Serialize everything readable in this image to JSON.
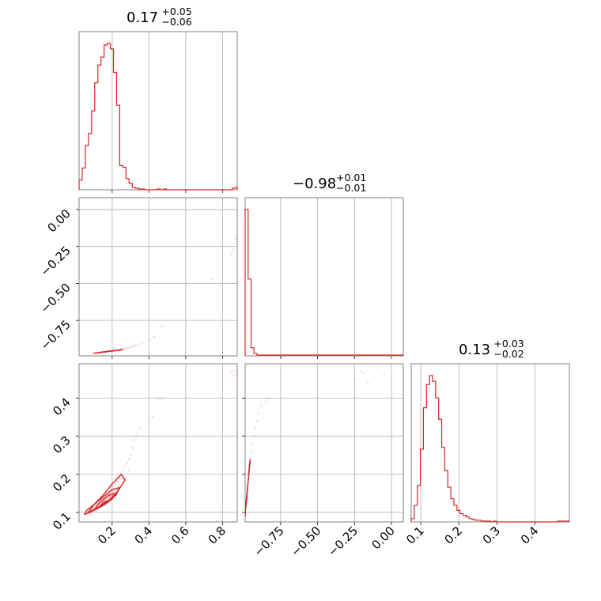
{
  "chart_data": {
    "type": "corner",
    "color": "#d62728",
    "params": [
      {
        "range": [
          0.02,
          0.88
        ],
        "ticks": [
          0.2,
          0.4,
          0.6,
          0.8
        ],
        "tick_labels": [
          "0.2",
          "0.4",
          "0.6",
          "0.8"
        ],
        "title": {
          "value": "0.17",
          "plus": "+0.05",
          "minus": "−0.06"
        }
      },
      {
        "range": [
          -0.99,
          0.08
        ],
        "ticks": [
          -0.75,
          -0.5,
          -0.25,
          0.0
        ],
        "tick_labels": [
          "−0.75",
          "−0.50",
          "−0.25",
          "0.00"
        ],
        "title": {
          "value": "−0.98",
          "plus": "+0.01",
          "minus": "−0.01"
        }
      },
      {
        "range": [
          0.075,
          0.49
        ],
        "ticks": [
          0.1,
          0.2,
          0.3,
          0.4
        ],
        "tick_labels": [
          "0.1",
          "0.2",
          "0.3",
          "0.4"
        ],
        "title": {
          "value": "0.13",
          "plus": "+0.03",
          "minus": "−0.02"
        }
      }
    ],
    "histograms": [
      {
        "param": 0,
        "bin_edges": [
          0.02,
          0.037,
          0.054,
          0.071,
          0.088,
          0.105,
          0.122,
          0.139,
          0.156,
          0.173,
          0.19,
          0.207,
          0.224,
          0.241,
          0.258,
          0.275,
          0.292,
          0.309,
          0.326,
          0.343,
          0.36,
          0.377,
          0.394,
          0.411,
          0.428,
          0.445,
          0.462,
          0.479,
          0.496,
          0.513,
          0.53,
          0.547,
          0.564,
          0.581,
          0.598,
          0.615,
          0.632,
          0.649,
          0.666,
          0.683,
          0.7,
          0.717,
          0.734,
          0.751,
          0.768,
          0.785,
          0.802,
          0.819,
          0.836,
          0.853,
          0.87,
          0.88
        ],
        "counts": [
          12,
          27,
          55,
          70,
          98,
          133,
          155,
          165,
          180,
          182,
          175,
          146,
          105,
          30,
          28,
          14,
          8,
          3,
          2,
          1,
          1,
          0,
          0,
          0,
          0,
          1,
          0,
          1,
          0,
          0,
          0,
          0,
          0,
          0,
          0,
          0,
          0,
          0,
          0,
          0,
          0,
          0,
          0,
          0,
          0,
          0,
          0,
          0,
          0,
          2,
          3
        ]
      },
      {
        "param": 1,
        "bin_edges": [
          -0.99,
          -0.97,
          -0.95,
          -0.93,
          -0.91,
          -0.89,
          -0.87,
          -0.85,
          -0.83,
          -0.81,
          -0.79,
          -0.77,
          -0.75,
          -0.73,
          -0.71,
          -0.69,
          -0.67,
          -0.65,
          -0.63,
          -0.61,
          -0.59,
          -0.57,
          -0.55,
          -0.53,
          -0.51,
          -0.49,
          -0.47,
          -0.45,
          -0.43,
          -0.41,
          -0.39,
          -0.37,
          -0.35,
          -0.33,
          -0.31,
          -0.29,
          -0.27,
          -0.25,
          -0.23,
          -0.21,
          -0.19,
          -0.17,
          -0.15,
          -0.13,
          -0.11,
          -0.09,
          -0.07,
          -0.05,
          -0.03,
          -0.01,
          0.01,
          0.03,
          0.05,
          0.07,
          0.08
        ],
        "counts": [
          181,
          95,
          10,
          3,
          1,
          1,
          1,
          1,
          1,
          1,
          1,
          1,
          1,
          1,
          1,
          1,
          1,
          1,
          1,
          1,
          1,
          1,
          1,
          1,
          1,
          1,
          1,
          1,
          1,
          1,
          1,
          1,
          1,
          1,
          1,
          1,
          1,
          1,
          1,
          1,
          1,
          1,
          1,
          1,
          1,
          1,
          1,
          1,
          1,
          1,
          1,
          1,
          1,
          1
        ]
      },
      {
        "param": 2,
        "bin_edges": [
          0.075,
          0.083,
          0.091,
          0.099,
          0.107,
          0.115,
          0.123,
          0.131,
          0.139,
          0.147,
          0.155,
          0.163,
          0.171,
          0.179,
          0.187,
          0.195,
          0.203,
          0.211,
          0.219,
          0.227,
          0.235,
          0.243,
          0.251,
          0.259,
          0.267,
          0.275,
          0.283,
          0.291,
          0.299,
          0.307,
          0.315,
          0.323,
          0.331,
          0.339,
          0.347,
          0.355,
          0.363,
          0.371,
          0.379,
          0.387,
          0.395,
          0.403,
          0.411,
          0.419,
          0.427,
          0.435,
          0.443,
          0.451,
          0.459,
          0.467,
          0.475,
          0.483,
          0.49
        ],
        "counts": [
          4,
          20,
          44,
          88,
          138,
          166,
          177,
          170,
          150,
          124,
          90,
          62,
          42,
          28,
          20,
          14,
          10,
          8,
          6,
          4,
          3,
          2,
          2,
          1,
          1,
          1,
          0,
          1,
          0,
          0,
          0,
          0,
          0,
          0,
          0,
          0,
          0,
          0,
          0,
          0,
          0,
          0,
          0,
          0,
          0,
          0,
          0,
          0,
          1,
          1,
          1,
          1
        ]
      }
    ],
    "scatter": [
      {
        "x_param": 0,
        "y_param": 1,
        "points": [
          [
            0.09,
            -0.975
          ],
          [
            0.1,
            -0.972
          ],
          [
            0.11,
            -0.97
          ],
          [
            0.12,
            -0.968
          ],
          [
            0.13,
            -0.966
          ],
          [
            0.14,
            -0.965
          ],
          [
            0.15,
            -0.963
          ],
          [
            0.16,
            -0.962
          ],
          [
            0.17,
            -0.96
          ],
          [
            0.18,
            -0.958
          ],
          [
            0.19,
            -0.956
          ],
          [
            0.2,
            -0.954
          ],
          [
            0.21,
            -0.952
          ],
          [
            0.22,
            -0.95
          ],
          [
            0.23,
            -0.948
          ],
          [
            0.24,
            -0.946
          ],
          [
            0.25,
            -0.944
          ],
          [
            0.26,
            -0.942
          ],
          [
            0.27,
            -0.94
          ],
          [
            0.28,
            -0.937
          ],
          [
            0.29,
            -0.934
          ],
          [
            0.3,
            -0.93
          ],
          [
            0.31,
            -0.927
          ],
          [
            0.32,
            -0.923
          ],
          [
            0.33,
            -0.918
          ],
          [
            0.35,
            -0.91
          ],
          [
            0.37,
            -0.9
          ],
          [
            0.4,
            -0.88
          ],
          [
            0.43,
            -0.86
          ],
          [
            0.47,
            -0.79
          ],
          [
            0.74,
            -0.47
          ],
          [
            0.85,
            -0.3
          ],
          [
            0.86,
            -0.27
          ],
          [
            0.87,
            -0.2
          ],
          [
            0.88,
            -0.17
          ]
        ],
        "contours": [
          [
            [
              0.1,
              -0.972
            ],
            [
              0.16,
              -0.964
            ],
            [
              0.22,
              -0.954
            ],
            [
              0.26,
              -0.946
            ],
            [
              0.24,
              -0.952
            ],
            [
              0.17,
              -0.962
            ],
            [
              0.1,
              -0.972
            ]
          ],
          [
            [
              0.12,
              -0.968
            ],
            [
              0.17,
              -0.961
            ],
            [
              0.21,
              -0.955
            ],
            [
              0.18,
              -0.959
            ],
            [
              0.12,
              -0.968
            ]
          ]
        ]
      },
      {
        "x_param": 0,
        "y_param": 2,
        "points": [
          [
            0.2,
            0.17
          ],
          [
            0.22,
            0.18
          ],
          [
            0.24,
            0.19
          ],
          [
            0.25,
            0.2
          ],
          [
            0.26,
            0.21
          ],
          [
            0.27,
            0.22
          ],
          [
            0.28,
            0.23
          ],
          [
            0.29,
            0.24
          ],
          [
            0.3,
            0.25
          ],
          [
            0.31,
            0.27
          ],
          [
            0.32,
            0.29
          ],
          [
            0.33,
            0.3
          ],
          [
            0.34,
            0.31
          ],
          [
            0.35,
            0.32
          ],
          [
            0.42,
            0.35
          ],
          [
            0.45,
            0.4
          ],
          [
            0.47,
            0.4
          ],
          [
            0.85,
            0.47
          ],
          [
            0.86,
            0.46
          ],
          [
            0.87,
            0.47
          ],
          [
            0.88,
            0.46
          ],
          [
            0.18,
            0.15
          ],
          [
            0.23,
            0.16
          ],
          [
            0.27,
            0.19
          ],
          [
            0.29,
            0.21
          ]
        ],
        "contours": [
          [
            [
              0.05,
              0.095
            ],
            [
              0.08,
              0.1
            ],
            [
              0.13,
              0.115
            ],
            [
              0.18,
              0.13
            ],
            [
              0.23,
              0.155
            ],
            [
              0.27,
              0.185
            ],
            [
              0.25,
              0.2
            ],
            [
              0.2,
              0.175
            ],
            [
              0.15,
              0.145
            ],
            [
              0.1,
              0.12
            ],
            [
              0.06,
              0.105
            ],
            [
              0.05,
              0.095
            ]
          ],
          [
            [
              0.07,
              0.1
            ],
            [
              0.12,
              0.112
            ],
            [
              0.17,
              0.125
            ],
            [
              0.22,
              0.145
            ],
            [
              0.24,
              0.165
            ],
            [
              0.2,
              0.16
            ],
            [
              0.15,
              0.14
            ],
            [
              0.1,
              0.12
            ],
            [
              0.07,
              0.1
            ]
          ],
          [
            [
              0.1,
              0.105
            ],
            [
              0.15,
              0.118
            ],
            [
              0.2,
              0.135
            ],
            [
              0.22,
              0.15
            ],
            [
              0.18,
              0.145
            ],
            [
              0.13,
              0.125
            ],
            [
              0.1,
              0.105
            ]
          ],
          [
            [
              0.13,
              0.113
            ],
            [
              0.17,
              0.124
            ],
            [
              0.19,
              0.132
            ],
            [
              0.15,
              0.126
            ],
            [
              0.13,
              0.113
            ]
          ]
        ]
      },
      {
        "x_param": 1,
        "y_param": 2,
        "points": [
          [
            -0.95,
            0.26
          ],
          [
            -0.94,
            0.28
          ],
          [
            -0.93,
            0.3
          ],
          [
            -0.92,
            0.32
          ],
          [
            -0.91,
            0.34
          ],
          [
            -0.9,
            0.36
          ],
          [
            -0.88,
            0.38
          ],
          [
            -0.85,
            0.39
          ],
          [
            -0.84,
            0.4
          ],
          [
            -0.25,
            0.45
          ],
          [
            -0.21,
            0.47
          ],
          [
            -0.19,
            0.465
          ],
          [
            -0.16,
            0.44
          ],
          [
            -0.05,
            0.46
          ],
          [
            -0.96,
            0.22
          ],
          [
            -0.97,
            0.2
          ]
        ],
        "contours": [
          [
            [
              -0.99,
              0.09
            ],
            [
              -0.985,
              0.12
            ],
            [
              -0.975,
              0.16
            ],
            [
              -0.965,
              0.2
            ],
            [
              -0.955,
              0.24
            ],
            [
              -0.96,
              0.23
            ],
            [
              -0.97,
              0.18
            ],
            [
              -0.98,
              0.13
            ],
            [
              -0.99,
              0.1
            ],
            [
              -0.99,
              0.09
            ]
          ],
          [
            [
              -0.988,
              0.11
            ],
            [
              -0.98,
              0.14
            ],
            [
              -0.972,
              0.17
            ],
            [
              -0.977,
              0.15
            ],
            [
              -0.988,
              0.11
            ]
          ]
        ]
      }
    ]
  }
}
